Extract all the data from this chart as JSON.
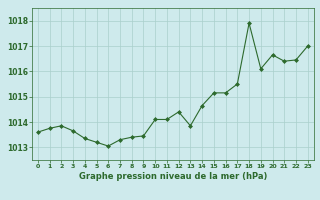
{
  "x": [
    0,
    1,
    2,
    3,
    4,
    5,
    6,
    7,
    8,
    9,
    10,
    11,
    12,
    13,
    14,
    15,
    16,
    17,
    18,
    19,
    20,
    21,
    22,
    23
  ],
  "y": [
    1013.6,
    1013.75,
    1013.85,
    1013.65,
    1013.35,
    1013.2,
    1013.05,
    1013.3,
    1013.4,
    1013.45,
    1014.1,
    1014.1,
    1014.4,
    1013.85,
    1014.65,
    1015.15,
    1015.15,
    1015.5,
    1017.9,
    1016.1,
    1016.65,
    1016.4,
    1016.45,
    1017.0
  ],
  "line_color": "#2d6a2d",
  "marker": "D",
  "marker_size": 2.0,
  "bg_color": "#ceeaec",
  "grid_color": "#aacfcc",
  "xlabel": "Graphe pression niveau de la mer (hPa)",
  "xlabel_color": "#2d6a2d",
  "tick_color": "#2d6a2d",
  "ylim": [
    1012.5,
    1018.5
  ],
  "yticks": [
    1013,
    1014,
    1015,
    1016,
    1017,
    1018
  ],
  "xlim": [
    -0.5,
    23.5
  ],
  "xticks": [
    0,
    1,
    2,
    3,
    4,
    5,
    6,
    7,
    8,
    9,
    10,
    11,
    12,
    13,
    14,
    15,
    16,
    17,
    18,
    19,
    20,
    21,
    22,
    23
  ]
}
